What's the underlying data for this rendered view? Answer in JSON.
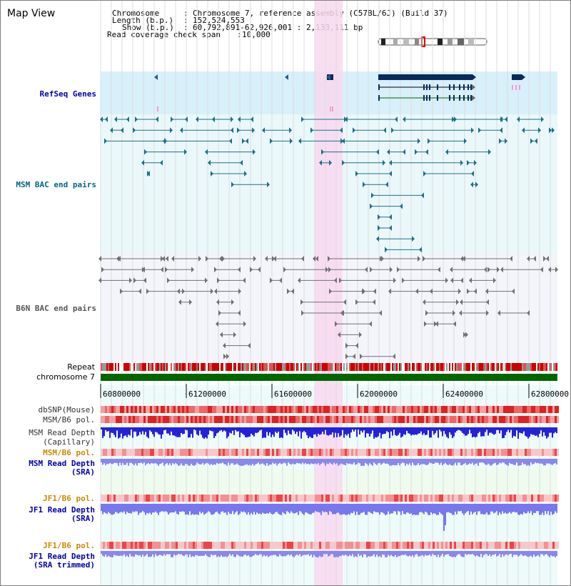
{
  "title": "Map View",
  "info": {
    "chromosome_label": "Chromosome",
    "chromosome_value": "Chromosome 7, reference assembly (C57BL/6J) (Build 37)",
    "length_label": "Length (b.p.)",
    "length_value": "152,524,553",
    "show_label": "Show (b.p.)",
    "show_value": "60,792,891-62,926,001 : 2,133,111 bp",
    "coverage_label": "Read coverage check span",
    "coverage_value": "10,000"
  },
  "tracks": {
    "refseq": "RefSeq Genes",
    "msm_bac": "MSM BAC end pairs",
    "b6n_bac": "B6N BAC end pairs",
    "repeat": "Repeat",
    "chromosome": "chromosome 7",
    "dbsnp": "dbSNP(Mouse)",
    "msm_b6_pol": "MSM/B6 pol.",
    "msm_depth_cap_1": "MSM Read Depth",
    "msm_depth_cap_2": "(Capillary)",
    "msm_b6_pol_sra": "MSM/B6 pol.",
    "msm_depth_sra_1": "MSM Read Depth",
    "msm_depth_sra_2": "(SRA)",
    "jf1_b6_pol": "JF1/B6 pol.",
    "jf1_depth_1": "JF1 Read Depth",
    "jf1_depth_2": "(SRA)",
    "jf1_b6_pol_trim": "JF1/B6 pol.",
    "jf1_depth_trim_1": "JF1 Read Depth",
    "jf1_depth_trim_2": "(SRA trimmed)"
  },
  "axis": {
    "ticks": [
      "60800000",
      "61200000",
      "61600000",
      "62000000",
      "62400000",
      "62800000"
    ]
  },
  "colors": {
    "refseq_bg": "#d8f0fa",
    "msm_bg": "#eaf8fa",
    "b6n_bg": "#f3f5fa",
    "highlight": "#f8d8f0",
    "gene": "#0a2a5a",
    "msm_pair": "#1f6f85",
    "b6n_pair": "#707070",
    "depth_blue": "#2222dd",
    "depth_light": "#8888ee",
    "chrom_green": "#006600",
    "label_blue": "#0000aa",
    "label_teal": "#006688",
    "label_orange": "#cc8800"
  }
}
